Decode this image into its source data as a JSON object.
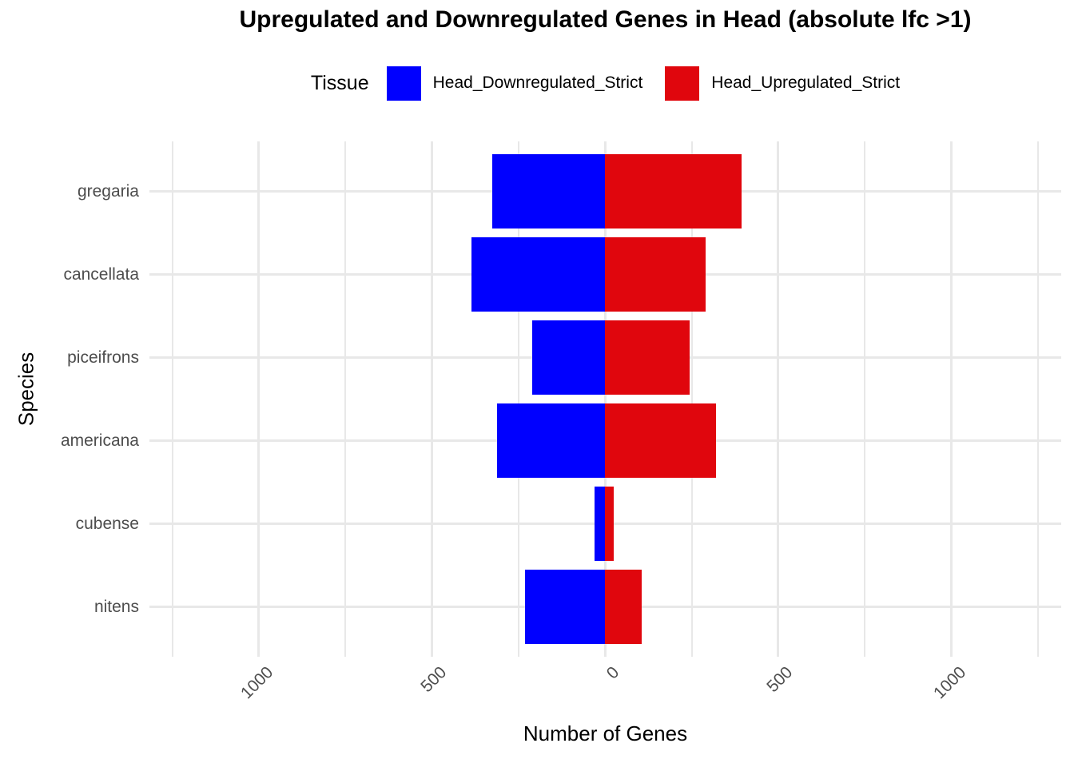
{
  "title": {
    "text": "Upregulated and Downregulated Genes in Head (absolute lfc >1)"
  },
  "legend": {
    "title": "Tissue",
    "items": [
      {
        "label": "Head_Downregulated_Strict",
        "color": "#0000FF"
      },
      {
        "label": "Head_Upregulated_Strict",
        "color": "#E0060D"
      }
    ]
  },
  "colors": {
    "downregulated": "#0000FF",
    "upregulated": "#E0060D",
    "gridline": "#E8E8E8",
    "axis_text": "#4D4D4D",
    "title_text": "#000000"
  },
  "chart_data": {
    "type": "bar",
    "orientation": "horizontal-diverging",
    "title": "Upregulated and Downregulated Genes in Head (absolute lfc >1)",
    "xlabel": "Number of Genes",
    "ylabel": "Species",
    "categories": [
      "gregaria",
      "cancellata",
      "piceifrons",
      "americana",
      "cubense",
      "nitens"
    ],
    "series": [
      {
        "name": "Head_Downregulated_Strict",
        "color": "#0000FF",
        "direction": "left",
        "values": [
          325,
          385,
          210,
          312,
          30,
          232
        ]
      },
      {
        "name": "Head_Upregulated_Strict",
        "color": "#E0060D",
        "direction": "right",
        "values": [
          395,
          290,
          245,
          320,
          25,
          105
        ]
      }
    ],
    "xlim": [
      -1315,
      1315
    ],
    "x_ticks_major": [
      -1000,
      -500,
      0,
      500,
      1000
    ],
    "x_tick_labels": [
      "1000",
      "500",
      "0",
      "500",
      "1000"
    ],
    "x_ticks_minor": [
      -1250,
      -750,
      -250,
      250,
      750,
      1250
    ],
    "grid": "on",
    "legend_position": "top-center"
  }
}
